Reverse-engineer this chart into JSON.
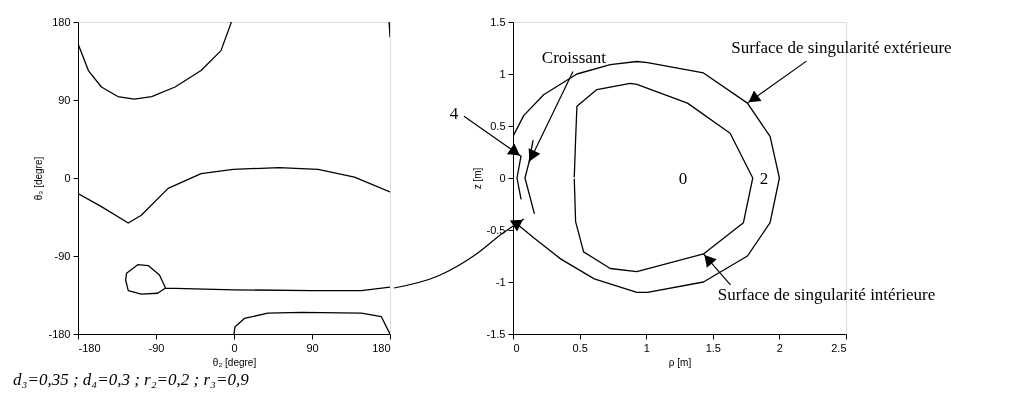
{
  "chart_data": [
    {
      "type": "line",
      "xlabel": "θ₂ [degre]",
      "ylabel": "θ₃ [degre]",
      "xlim": [
        -180,
        180
      ],
      "ylim": [
        -180,
        180
      ],
      "xticks": [
        -180,
        -90,
        0,
        90,
        180
      ],
      "yticks": [
        -180,
        -90,
        0,
        90,
        180
      ],
      "grid": false,
      "series": [
        {
          "color": "#000000",
          "x": [
            -180,
            -168,
            -153,
            -134,
            -115,
            -95,
            -68,
            -38,
            -15,
            -3
          ],
          "values": [
            155,
            124,
            105,
            94,
            91,
            94,
            105,
            124,
            147,
            180
          ]
        },
        {
          "color": "#000000",
          "x": [
            179,
            180
          ],
          "values": [
            180,
            163
          ]
        },
        {
          "color": "#000000",
          "x": [
            -180,
            -153,
            -122,
            -107,
            -76,
            -38,
            -1,
            52,
            97,
            139,
            180
          ],
          "values": [
            -18,
            -33,
            -52,
            -43,
            -12,
            5,
            10,
            12,
            10,
            1,
            -16
          ]
        },
        {
          "color": "#000000",
          "x": [
            -79,
            -86,
            -99,
            -111,
            -124,
            -125,
            -122,
            -107,
            -88,
            -79,
            0,
            90,
            147,
            180
          ],
          "values": [
            -127,
            -112,
            -101,
            -100,
            -110,
            -118,
            -130,
            -134,
            -133,
            -127,
            -129,
            -130,
            -130,
            -126
          ]
        },
        {
          "color": "#000000",
          "x": [
            0,
            1,
            12,
            39,
            78,
            147,
            170,
            180
          ],
          "values": [
            -180,
            -172,
            -162,
            -156,
            -155,
            -156,
            -160,
            -180
          ]
        }
      ],
      "annotations": [
        "d₃=0,35 ; d₄=0,3 ; r₂=0,2 ; r₃=0,9"
      ]
    },
    {
      "type": "line",
      "xlabel": "ρ [m]",
      "ylabel": "z [m]",
      "xlim": [
        0,
        2.5
      ],
      "ylim": [
        -1.5,
        1.5
      ],
      "xticks": [
        0,
        0.5,
        1,
        1.5,
        2,
        2.5
      ],
      "yticks": [
        -1.5,
        -1,
        -0.5,
        0,
        0.5,
        1,
        1.5
      ],
      "grid": false,
      "series": [
        {
          "color": "#000000",
          "x": [
            0,
            0.08,
            0.23,
            0.48,
            0.73,
            0.93,
            1.01,
            1.43,
            1.76,
            1.93,
            2.0,
            1.93,
            1.76,
            1.43,
            1.01,
            0.93,
            0.61,
            0.36,
            0.16,
            0
          ],
          "values": [
            0.4,
            0.6,
            0.8,
            1.0,
            1.09,
            1.12,
            1.11,
            1.01,
            0.72,
            0.4,
            0.0,
            -0.43,
            -0.75,
            -1.0,
            -1.1,
            -1.1,
            -0.97,
            -0.78,
            -0.58,
            -0.41
          ]
        },
        {
          "color": "#000000",
          "x": [
            0.46,
            0.47,
            0.48,
            0.63,
            0.88,
            0.93,
            1.31,
            1.63,
            1.8,
            1.73,
            1.43,
            0.93,
            0.73,
            0.53,
            0.47,
            0.46
          ],
          "values": [
            0.01,
            0.37,
            0.69,
            0.85,
            0.91,
            0.9,
            0.72,
            0.43,
            0.0,
            -0.43,
            -0.73,
            -0.9,
            -0.87,
            -0.71,
            -0.42,
            -0.01
          ]
        },
        {
          "color": "#000000",
          "x": [
            0.06,
            0.03,
            0.06
          ],
          "values": [
            0.21,
            0.0,
            -0.2
          ]
        },
        {
          "color": "#000000",
          "x": [
            0.15,
            0.12,
            0.09,
            0.16
          ],
          "values": [
            0.36,
            0.15,
            0.0,
            -0.34
          ]
        }
      ],
      "annotations": [
        "0",
        "2",
        {
          "text": "4",
          "x": 0.06,
          "y": 0.21
        },
        {
          "text": "Croissant",
          "x": 0.12,
          "y": 0.15
        },
        {
          "text": "Surface de singularité extérieure",
          "x": 1.76,
          "y": 0.72
        },
        {
          "text": "Surface de singularité intérieure",
          "x": 1.43,
          "y": -0.73
        }
      ]
    }
  ]
}
